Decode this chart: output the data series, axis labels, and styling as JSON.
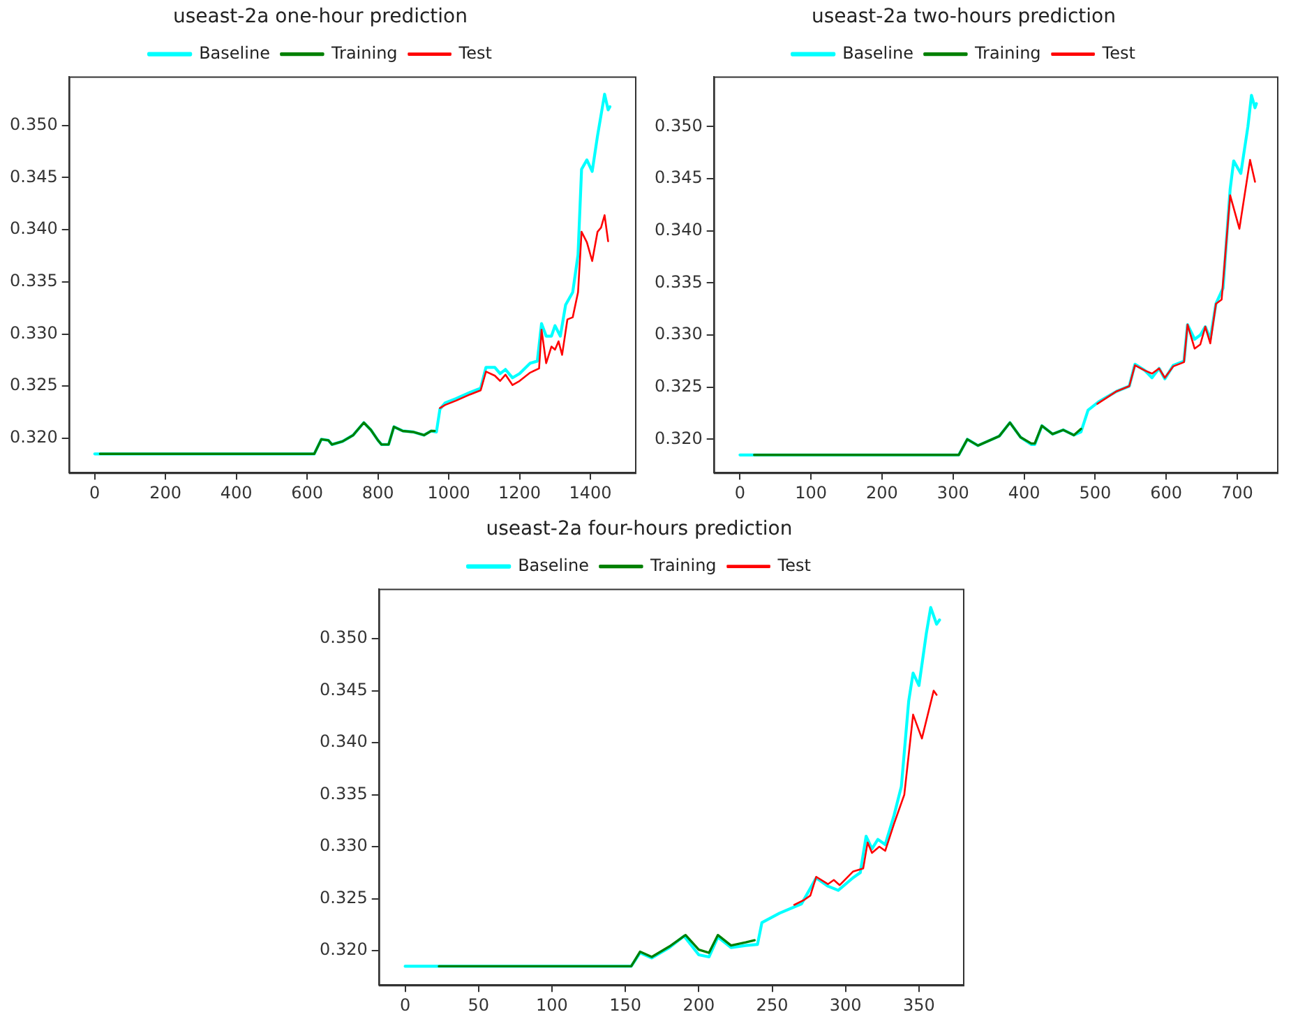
{
  "chart_data": [
    {
      "type": "line",
      "title": "useast-2a one-hour prediction",
      "legend": "top",
      "grid": false,
      "line_style": "solid",
      "marker": "none",
      "xlim": [
        -73,
        1526
      ],
      "xticks": [
        0,
        200,
        400,
        600,
        800,
        1000,
        1200,
        1400
      ],
      "ylim": [
        0.3167,
        0.3547
      ],
      "yticks": [
        {
          "value": 0.32,
          "label": "0.320"
        },
        {
          "value": 0.325,
          "label": "0.325"
        },
        {
          "value": 0.33,
          "label": "0.330"
        },
        {
          "value": 0.335,
          "label": "0.335"
        },
        {
          "value": 0.34,
          "label": "0.340"
        },
        {
          "value": 0.345,
          "label": "0.345"
        },
        {
          "value": 0.35,
          "label": "0.350"
        }
      ],
      "series": [
        {
          "name": "Baseline",
          "color": "#00ffff",
          "x": [
            0,
            620,
            640,
            660,
            670,
            700,
            730,
            760,
            780,
            800,
            810,
            830,
            845,
            870,
            900,
            930,
            950,
            965,
            975,
            990,
            1020,
            1060,
            1090,
            1105,
            1130,
            1145,
            1160,
            1180,
            1200,
            1230,
            1250,
            1262,
            1275,
            1290,
            1300,
            1315,
            1330,
            1350,
            1365,
            1375,
            1390,
            1405,
            1420,
            1440,
            1450,
            1455
          ],
          "values": [
            0.3185,
            0.3185,
            0.3199,
            0.3198,
            0.3194,
            0.3197,
            0.3203,
            0.3215,
            0.3208,
            0.3198,
            0.3194,
            0.3194,
            0.3211,
            0.3207,
            0.3206,
            0.3203,
            0.3207,
            0.3206,
            0.3228,
            0.3234,
            0.3238,
            0.3244,
            0.3248,
            0.3268,
            0.3268,
            0.3262,
            0.3266,
            0.3258,
            0.3262,
            0.3272,
            0.3274,
            0.331,
            0.3298,
            0.3298,
            0.3308,
            0.3298,
            0.3328,
            0.334,
            0.3376,
            0.3458,
            0.3467,
            0.3456,
            0.349,
            0.353,
            0.3515,
            0.3518
          ]
        },
        {
          "name": "Training",
          "color": "#008000",
          "x": [
            15,
            620,
            640,
            660,
            670,
            700,
            730,
            760,
            780,
            800,
            810,
            830,
            845,
            870,
            900,
            930,
            950,
            960
          ],
          "values": [
            0.3185,
            0.3185,
            0.3199,
            0.3198,
            0.3194,
            0.3197,
            0.3203,
            0.3215,
            0.3208,
            0.3198,
            0.3194,
            0.3194,
            0.3211,
            0.3207,
            0.3206,
            0.3203,
            0.3207,
            0.3207
          ]
        },
        {
          "name": "Test",
          "color": "#ff0000",
          "x": [
            975,
            990,
            1020,
            1060,
            1090,
            1105,
            1130,
            1145,
            1160,
            1180,
            1200,
            1230,
            1255,
            1262,
            1275,
            1290,
            1300,
            1310,
            1320,
            1335,
            1350,
            1365,
            1375,
            1390,
            1405,
            1420,
            1430,
            1440,
            1450
          ],
          "values": [
            0.3229,
            0.3232,
            0.3236,
            0.3242,
            0.3246,
            0.3264,
            0.326,
            0.3255,
            0.3261,
            0.3251,
            0.3255,
            0.3263,
            0.3267,
            0.3304,
            0.3272,
            0.3288,
            0.3285,
            0.3293,
            0.328,
            0.3314,
            0.3316,
            0.334,
            0.3398,
            0.3388,
            0.337,
            0.3398,
            0.3402,
            0.3414,
            0.3389
          ]
        }
      ]
    },
    {
      "type": "line",
      "title": "useast-2a two-hours prediction",
      "legend": "top",
      "grid": false,
      "line_style": "solid",
      "marker": "none",
      "xlim": [
        -37,
        756
      ],
      "xticks": [
        0,
        100,
        200,
        300,
        400,
        500,
        600,
        700
      ],
      "ylim": [
        0.3168,
        0.3548
      ],
      "yticks": [
        {
          "value": 0.32,
          "label": "0.320"
        },
        {
          "value": 0.325,
          "label": "0.325"
        },
        {
          "value": 0.33,
          "label": "0.330"
        },
        {
          "value": 0.335,
          "label": "0.335"
        },
        {
          "value": 0.34,
          "label": "0.340"
        },
        {
          "value": 0.345,
          "label": "0.345"
        },
        {
          "value": 0.35,
          "label": "0.350"
        }
      ],
      "series": [
        {
          "name": "Baseline",
          "color": "#00ffff",
          "x": [
            0,
            308,
            320,
            335,
            365,
            380,
            395,
            410,
            415,
            425,
            440,
            455,
            470,
            480,
            490,
            505,
            530,
            548,
            556,
            570,
            580,
            590,
            598,
            610,
            625,
            630,
            640,
            648,
            655,
            662,
            670,
            680,
            690,
            695,
            705,
            715,
            720,
            725,
            727
          ],
          "values": [
            0.3185,
            0.3185,
            0.32,
            0.3194,
            0.3203,
            0.3216,
            0.3202,
            0.3195,
            0.3195,
            0.3213,
            0.3205,
            0.3209,
            0.3204,
            0.3207,
            0.3228,
            0.3236,
            0.3246,
            0.3251,
            0.3272,
            0.3266,
            0.3259,
            0.3268,
            0.3258,
            0.3271,
            0.3275,
            0.331,
            0.3296,
            0.33,
            0.3308,
            0.3296,
            0.333,
            0.3345,
            0.344,
            0.3467,
            0.3455,
            0.35,
            0.353,
            0.3518,
            0.3522
          ]
        },
        {
          "name": "Training",
          "color": "#008000",
          "x": [
            20,
            308,
            320,
            335,
            365,
            380,
            395,
            410,
            415,
            425,
            440,
            455,
            470,
            480
          ],
          "values": [
            0.3185,
            0.3185,
            0.32,
            0.3194,
            0.3203,
            0.3216,
            0.3202,
            0.3196,
            0.3196,
            0.3213,
            0.3205,
            0.3209,
            0.3204,
            0.321
          ]
        },
        {
          "name": "Test",
          "color": "#ff0000",
          "x": [
            503,
            530,
            548,
            556,
            570,
            580,
            590,
            598,
            610,
            625,
            630,
            640,
            648,
            655,
            662,
            670,
            678,
            690,
            703,
            718,
            725
          ],
          "values": [
            0.3234,
            0.3246,
            0.3251,
            0.3271,
            0.3266,
            0.3263,
            0.3268,
            0.3259,
            0.327,
            0.3274,
            0.331,
            0.3287,
            0.3291,
            0.3308,
            0.3292,
            0.333,
            0.3334,
            0.3434,
            0.3402,
            0.3468,
            0.3447
          ]
        }
      ]
    },
    {
      "type": "line",
      "title": "useast-2a four-hours prediction",
      "legend": "top",
      "grid": false,
      "line_style": "solid",
      "marker": "none",
      "xlim": [
        -18,
        380
      ],
      "xticks": [
        0,
        50,
        100,
        150,
        200,
        250,
        300,
        350
      ],
      "ylim": [
        0.3167,
        0.3548
      ],
      "yticks": [
        {
          "value": 0.32,
          "label": "0.320"
        },
        {
          "value": 0.325,
          "label": "0.325"
        },
        {
          "value": 0.33,
          "label": "0.330"
        },
        {
          "value": 0.335,
          "label": "0.335"
        },
        {
          "value": 0.34,
          "label": "0.340"
        },
        {
          "value": 0.345,
          "label": "0.345"
        },
        {
          "value": 0.35,
          "label": "0.350"
        }
      ],
      "series": [
        {
          "name": "Baseline",
          "color": "#00ffff",
          "x": [
            0,
            154,
            160,
            168,
            180,
            190,
            200,
            207,
            213,
            222,
            232,
            240,
            243,
            255,
            270,
            280,
            288,
            295,
            305,
            310,
            314,
            318,
            322,
            327,
            333,
            338,
            343,
            346,
            350,
            355,
            358,
            362,
            364
          ],
          "values": [
            0.3185,
            0.3185,
            0.3198,
            0.3193,
            0.3203,
            0.3214,
            0.3196,
            0.3194,
            0.3213,
            0.3203,
            0.3205,
            0.3206,
            0.3227,
            0.3236,
            0.3245,
            0.327,
            0.3262,
            0.3258,
            0.327,
            0.3275,
            0.331,
            0.3298,
            0.3307,
            0.3302,
            0.333,
            0.3358,
            0.344,
            0.3467,
            0.3455,
            0.3505,
            0.353,
            0.3514,
            0.3518
          ]
        },
        {
          "name": "Training",
          "color": "#008000",
          "x": [
            23,
            154,
            160,
            168,
            180,
            191,
            200,
            207,
            213,
            222,
            232,
            238
          ],
          "values": [
            0.3185,
            0.3185,
            0.3199,
            0.3194,
            0.3204,
            0.3215,
            0.3201,
            0.3198,
            0.3215,
            0.3205,
            0.3208,
            0.321
          ]
        },
        {
          "name": "Test",
          "color": "#ff0000",
          "x": [
            265,
            272,
            276,
            280,
            288,
            292,
            296,
            305,
            312,
            315,
            318,
            323,
            327,
            333,
            340,
            346,
            352,
            360,
            362
          ],
          "values": [
            0.3244,
            0.3249,
            0.3253,
            0.3271,
            0.3264,
            0.3268,
            0.3263,
            0.3276,
            0.3279,
            0.3304,
            0.3294,
            0.33,
            0.3296,
            0.3322,
            0.335,
            0.3427,
            0.3404,
            0.345,
            0.3446
          ]
        }
      ]
    }
  ]
}
